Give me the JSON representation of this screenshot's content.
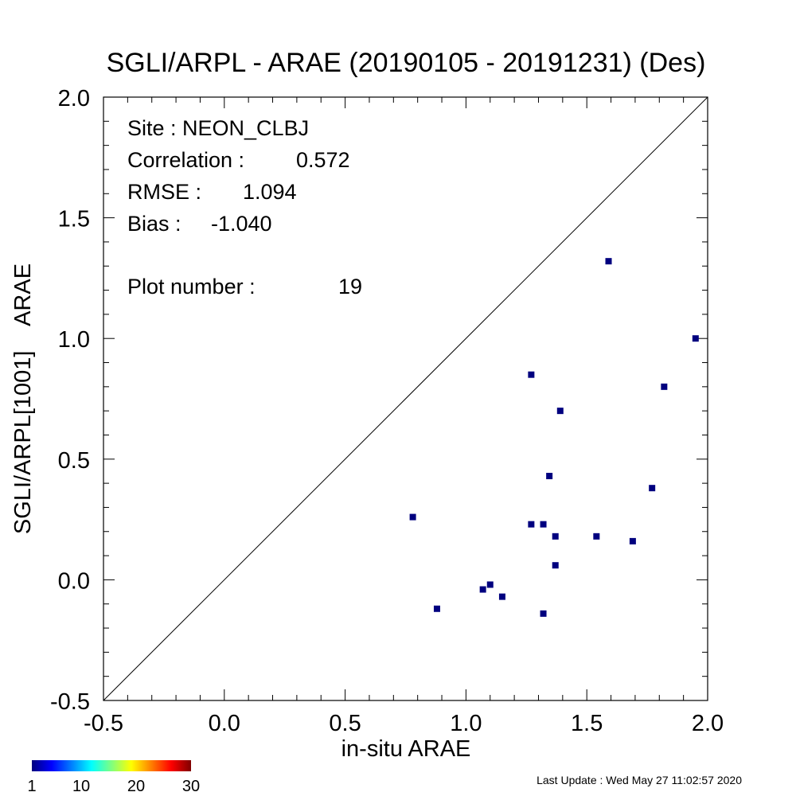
{
  "chart_data": {
    "type": "scatter",
    "title": "SGLI/ARPL - ARAE (20190105 - 20191231) (Des)",
    "xlabel": "in-situ ARAE",
    "ylabel": "SGLI/ARPL[1001]    ARAE",
    "xlim": [
      -0.5,
      2.0
    ],
    "ylim": [
      -0.5,
      2.0
    ],
    "x_ticks": [
      "-0.5",
      "0.0",
      "0.5",
      "1.0",
      "1.5",
      "2.0"
    ],
    "y_ticks": [
      "-0.5",
      "0.0",
      "0.5",
      "1.0",
      "1.5",
      "2.0"
    ],
    "one_to_one_line": true,
    "grid": false,
    "point_color": "#00007f",
    "points": [
      {
        "x": 0.78,
        "y": 0.26
      },
      {
        "x": 0.88,
        "y": -0.12
      },
      {
        "x": 1.07,
        "y": -0.04
      },
      {
        "x": 1.1,
        "y": -0.02
      },
      {
        "x": 1.15,
        "y": -0.07
      },
      {
        "x": 1.27,
        "y": 0.85
      },
      {
        "x": 1.27,
        "y": 0.23
      },
      {
        "x": 1.32,
        "y": 0.23
      },
      {
        "x": 1.32,
        "y": -0.14
      },
      {
        "x": 1.345,
        "y": 0.43
      },
      {
        "x": 1.37,
        "y": 0.18
      },
      {
        "x": 1.37,
        "y": 0.06
      },
      {
        "x": 1.39,
        "y": 0.7
      },
      {
        "x": 1.54,
        "y": 0.18
      },
      {
        "x": 1.59,
        "y": 1.32
      },
      {
        "x": 1.69,
        "y": 0.16
      },
      {
        "x": 1.77,
        "y": 0.38
      },
      {
        "x": 1.82,
        "y": 0.8
      },
      {
        "x": 1.95,
        "y": 1.0
      }
    ],
    "stats": {
      "site": "Site : NEON_CLBJ",
      "correlation_label": "Correlation :",
      "correlation": "0.572",
      "rmse_label": "RMSE :",
      "rmse": "1.094",
      "bias_label": "Bias :",
      "bias": "-1.040",
      "plot_number_label": "Plot number :",
      "plot_number": "19"
    },
    "colorbar": {
      "ticks": [
        "1",
        "10",
        "20",
        "30"
      ],
      "range": [
        1,
        30
      ],
      "colormap": "jet"
    }
  },
  "footer": {
    "last_update": "Last Update : Wed May 27 11:02:57 2020"
  }
}
